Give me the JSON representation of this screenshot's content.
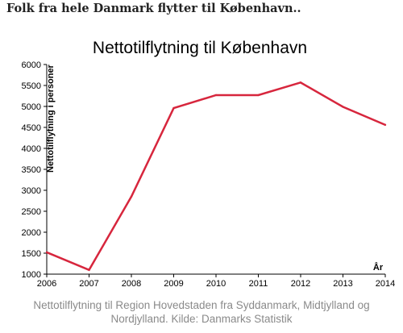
{
  "headline": "Folk fra hele Danmark flytter til København..",
  "caption": {
    "line1": "Nettotilflytning til Region Hovedstaden fra Syddanmark, Midtjylland og",
    "line2": "Nordjylland. Kilde: Danmarks Statistik"
  },
  "colors": {
    "line": "#d7263d",
    "axis": "#000000",
    "text": "#000000",
    "caption": "#8a8a8a"
  },
  "chart_data": {
    "type": "line",
    "title": "Nettotilflytning til København",
    "xlabel": "År",
    "ylabel": "Nettotilflytning i personer",
    "x": [
      2006,
      2007,
      2008,
      2009,
      2010,
      2011,
      2012,
      2013,
      2014
    ],
    "series": [
      {
        "values": [
          1520,
          1100,
          2850,
          4960,
          5270,
          5270,
          5570,
          4990,
          4560
        ]
      }
    ],
    "ylim": [
      1000,
      6000
    ],
    "yticks": [
      1000,
      1500,
      2000,
      2500,
      3000,
      3500,
      4000,
      4500,
      5000,
      5500,
      6000
    ],
    "xlim": [
      2006,
      2014
    ],
    "grid": false,
    "legend": "none"
  }
}
